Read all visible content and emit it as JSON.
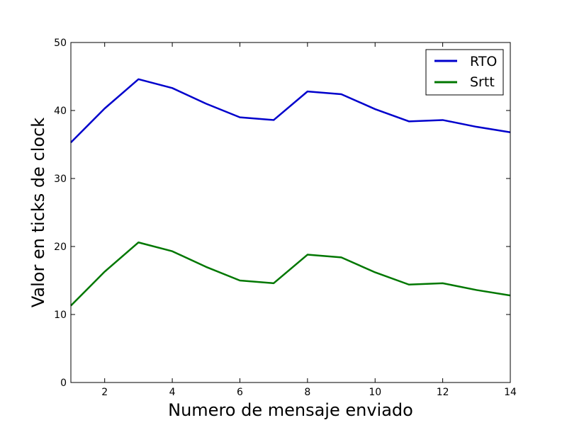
{
  "chart_data": {
    "type": "line",
    "title": "",
    "xlabel": "Numero de mensaje enviado",
    "ylabel": "Valor en ticks de clock",
    "xlim": [
      1,
      14
    ],
    "ylim": [
      0,
      50
    ],
    "xticks": [
      2,
      4,
      6,
      8,
      10,
      12,
      14
    ],
    "yticks": [
      0,
      10,
      20,
      30,
      40,
      50
    ],
    "x": [
      1,
      2,
      3,
      4,
      5,
      6,
      7,
      8,
      9,
      10,
      11,
      12,
      13,
      14
    ],
    "series": [
      {
        "name": "RTO",
        "color": "#0000cc",
        "values": [
          35.3,
          40.3,
          44.6,
          43.3,
          41.0,
          39.0,
          38.6,
          42.8,
          42.4,
          40.2,
          38.4,
          38.6,
          37.6,
          36.8
        ]
      },
      {
        "name": "Srtt",
        "color": "#007700",
        "values": [
          11.3,
          16.3,
          20.6,
          19.3,
          17.0,
          15.0,
          14.6,
          18.8,
          18.4,
          16.2,
          14.4,
          14.6,
          13.6,
          12.8
        ]
      }
    ],
    "grid": false,
    "legend": "top-right"
  }
}
